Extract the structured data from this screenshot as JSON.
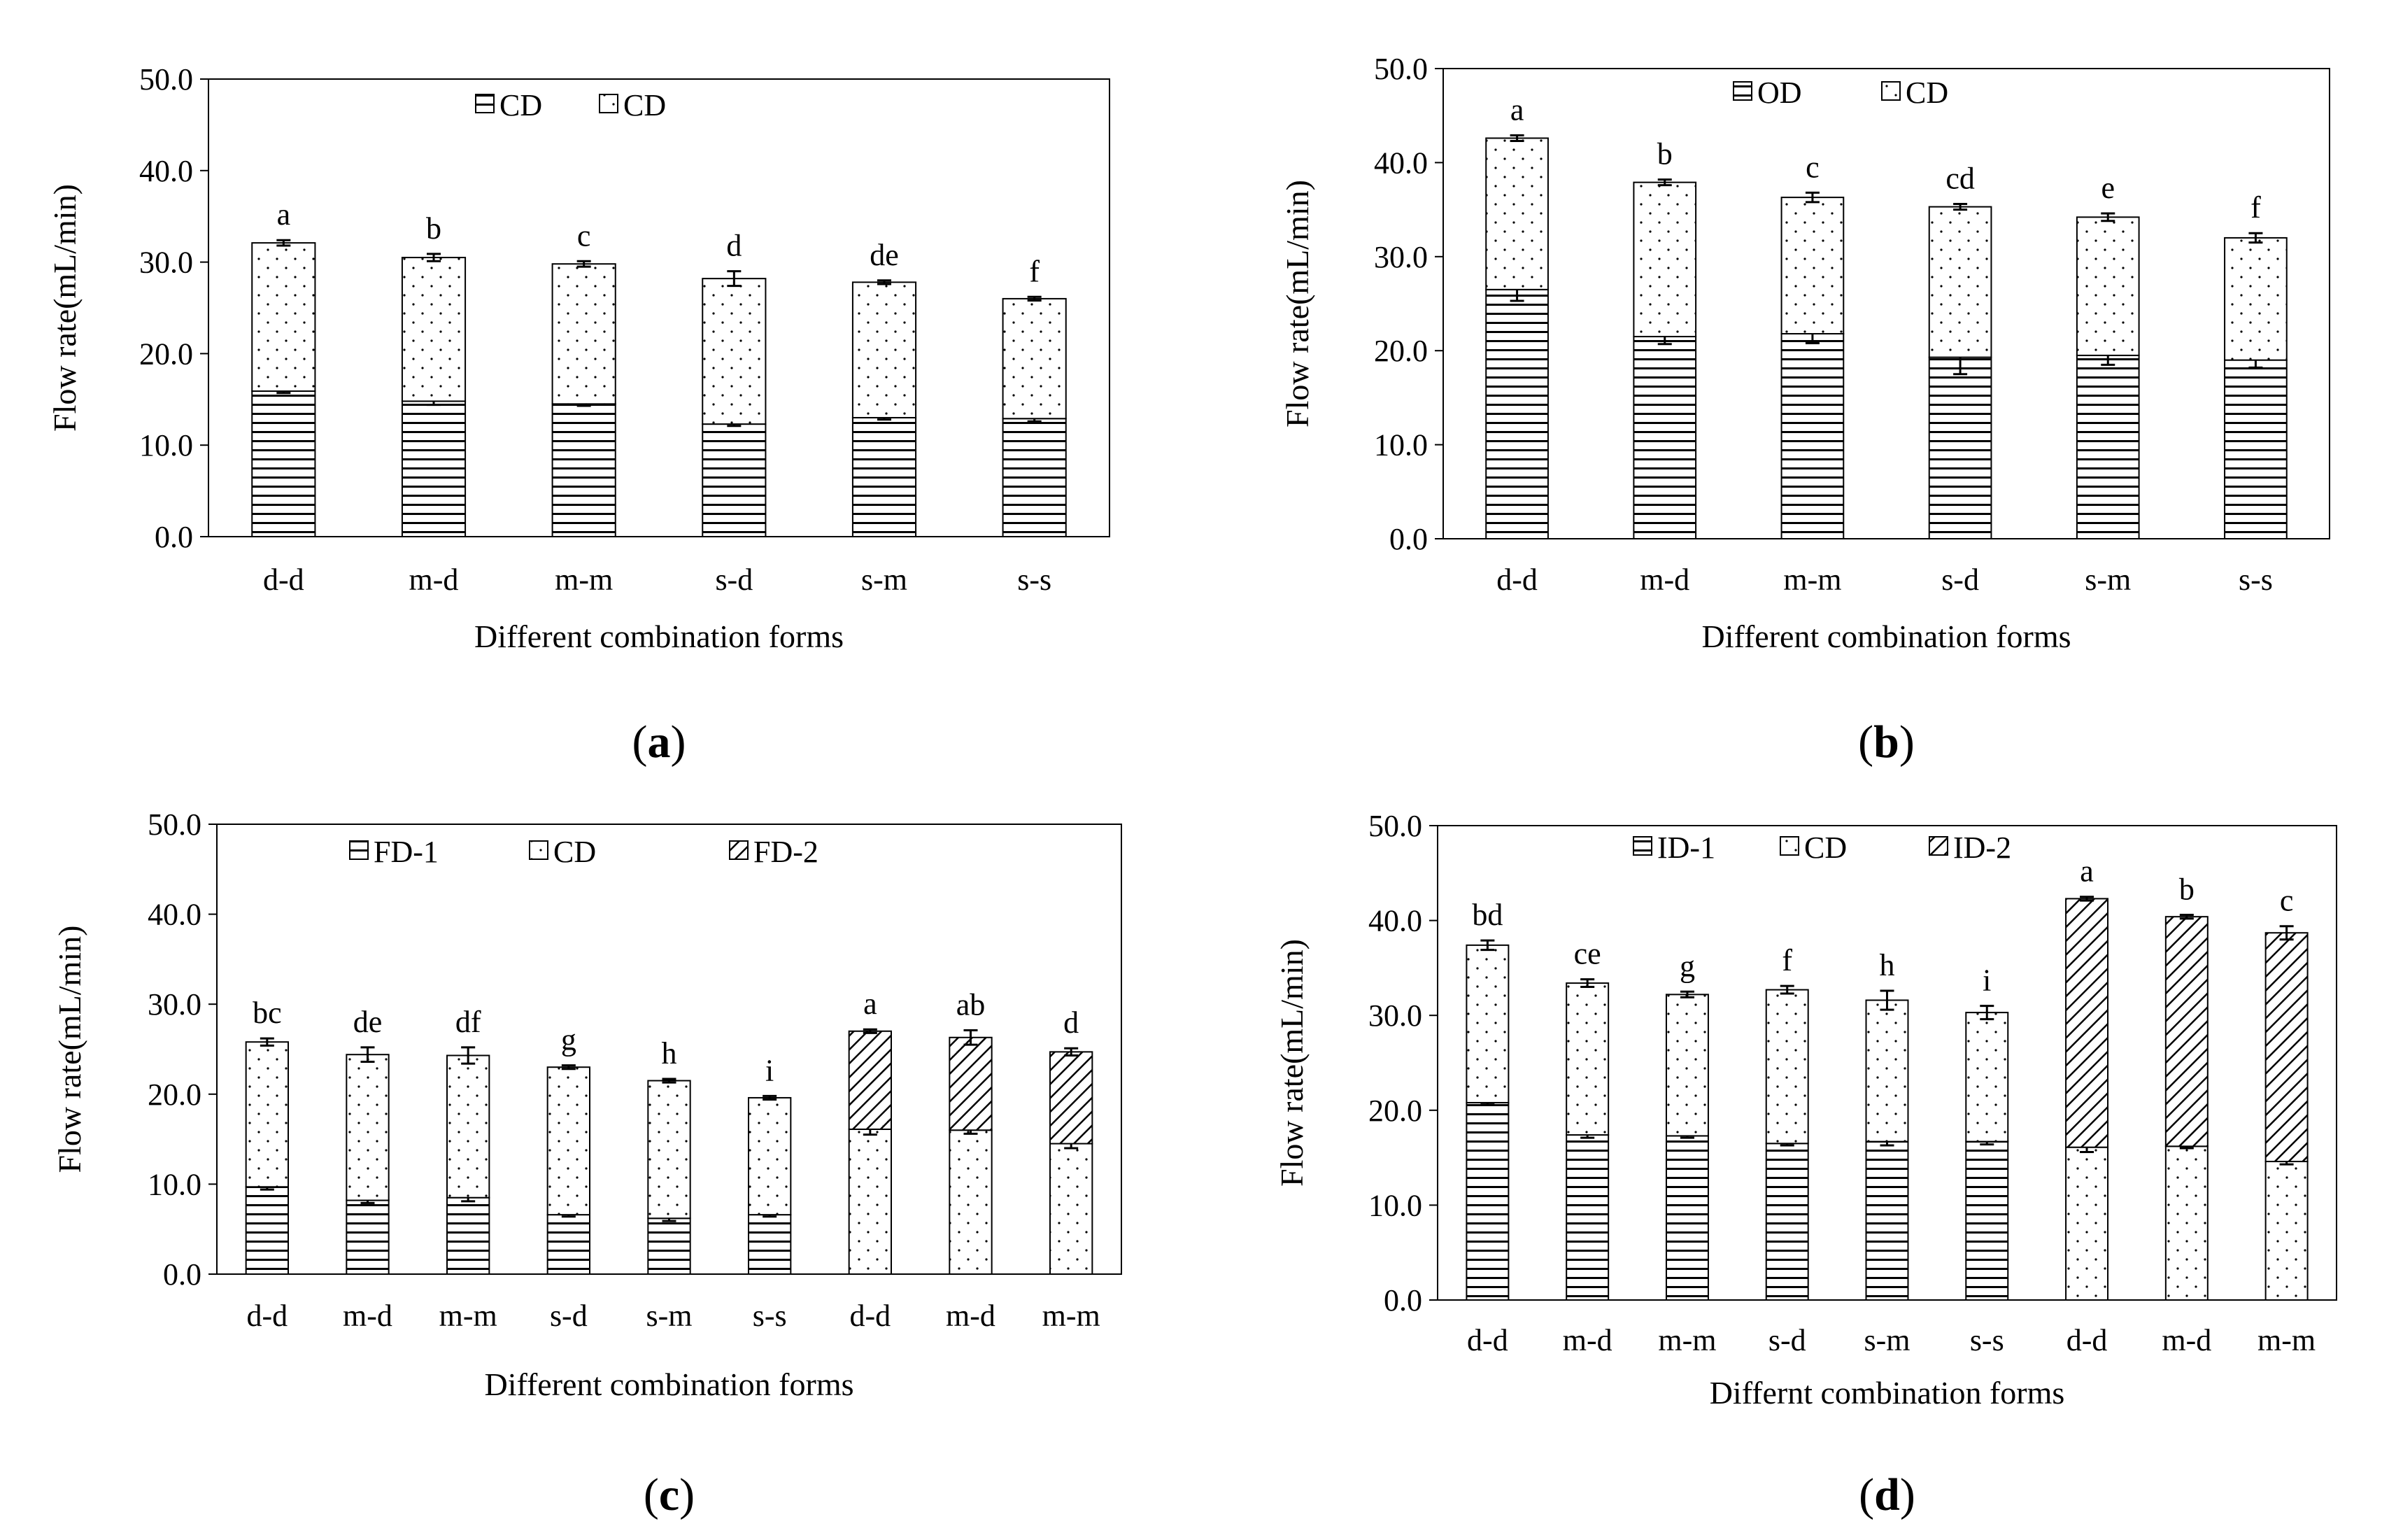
{
  "figure": {
    "background": "#ffffff",
    "bar_stroke": "#000000"
  },
  "chart_data": [
    {
      "id": "a",
      "panel_label": "a",
      "type": "bar",
      "stacked": true,
      "title": "",
      "xlabel": "Different combination forms",
      "ylabel": "Flow rate(mL/min)",
      "ylim": [
        0,
        50
      ],
      "yticks": [
        "0.0",
        "10.0",
        "20.0",
        "30.0",
        "40.0",
        "50.0"
      ],
      "categories": [
        "d-d",
        "m-d",
        "m-m",
        "s-d",
        "s-m",
        "s-s"
      ],
      "series": [
        {
          "name": "CD",
          "pattern": "hlines",
          "values": [
            15.9,
            14.8,
            14.5,
            12.3,
            13.0,
            12.9
          ],
          "errors": [
            0.2,
            0.4,
            0.2,
            0.2,
            0.2,
            0.3
          ]
        },
        {
          "name": "CD",
          "pattern": "dots",
          "values": [
            16.2,
            15.7,
            15.3,
            15.9,
            14.8,
            13.1
          ],
          "errors": [
            0.3,
            0.4,
            0.3,
            0.8,
            0.2,
            0.2
          ]
        }
      ],
      "significance": [
        "a",
        "b",
        "c",
        "d",
        "de",
        "f"
      ]
    },
    {
      "id": "b",
      "panel_label": "b",
      "type": "bar",
      "stacked": true,
      "title": "",
      "xlabel": "Different combination forms",
      "ylabel": "Flow rate(mL/min)",
      "ylim": [
        0,
        50
      ],
      "yticks": [
        "0.0",
        "10.0",
        "20.0",
        "30.0",
        "40.0",
        "50.0"
      ],
      "categories": [
        "d-d",
        "m-d",
        "m-m",
        "s-d",
        "s-m",
        "s-s"
      ],
      "series": [
        {
          "name": "OD",
          "pattern": "hlines",
          "values": [
            26.5,
            21.5,
            21.8,
            19.3,
            19.5,
            19.0
          ],
          "errors": [
            1.2,
            0.8,
            1.0,
            1.8,
            1.0,
            0.8
          ]
        },
        {
          "name": "CD",
          "pattern": "dots",
          "values": [
            16.1,
            16.4,
            14.5,
            16.0,
            14.7,
            13.0
          ],
          "errors": [
            0.3,
            0.3,
            0.5,
            0.3,
            0.4,
            0.5
          ]
        }
      ],
      "significance": [
        "a",
        "b",
        "c",
        "cd",
        "e",
        "f"
      ]
    },
    {
      "id": "c",
      "panel_label": "c",
      "type": "bar",
      "stacked": true,
      "title": "",
      "xlabel": "Different combination forms",
      "ylabel": "Flow rate(mL/min)",
      "ylim": [
        0,
        50
      ],
      "yticks": [
        "0.0",
        "10.0",
        "20.0",
        "30.0",
        "40.0",
        "50.0"
      ],
      "categories": [
        "d-d",
        "m-d",
        "m-m",
        "s-d",
        "s-m",
        "s-s",
        "d-d",
        "m-d",
        "m-m"
      ],
      "series": [
        {
          "name": "FD-1",
          "pattern": "hlines",
          "values": [
            9.7,
            8.2,
            8.5,
            6.6,
            6.2,
            6.6,
            null,
            null,
            null
          ],
          "errors": [
            0.3,
            0.3,
            0.4,
            0.2,
            0.3,
            0.2,
            null,
            null,
            null
          ]
        },
        {
          "name": "CD",
          "pattern": "dots",
          "values": [
            16.1,
            16.2,
            15.8,
            16.4,
            15.3,
            13.0,
            16.1,
            16.0,
            14.5
          ],
          "errors": [
            0.4,
            0.8,
            0.9,
            0.2,
            0.2,
            0.2,
            0.6,
            0.4,
            0.5
          ]
        },
        {
          "name": "FD-2",
          "pattern": "diag",
          "values": [
            null,
            null,
            null,
            null,
            null,
            null,
            10.9,
            10.3,
            10.2
          ],
          "errors": [
            null,
            null,
            null,
            null,
            null,
            null,
            0.2,
            0.8,
            0.4
          ]
        }
      ],
      "significance": [
        "bc",
        "de",
        "df",
        "g",
        "h",
        "i",
        "a",
        "ab",
        "d"
      ]
    },
    {
      "id": "d",
      "panel_label": "d",
      "type": "bar",
      "stacked": true,
      "title": "",
      "xlabel": "Differnt combination forms",
      "ylabel": "Flow rate(mL/min)",
      "ylim": [
        0,
        50
      ],
      "yticks": [
        "0.0",
        "10.0",
        "20.0",
        "30.0",
        "40.0",
        "50.0"
      ],
      "categories": [
        "d-d",
        "m-d",
        "m-m",
        "s-d",
        "s-m",
        "s-s",
        "d-d",
        "m-d",
        "m-m"
      ],
      "series": [
        {
          "name": "ID-1",
          "pattern": "hlines",
          "values": [
            20.8,
            17.4,
            17.3,
            16.5,
            16.7,
            16.7,
            null,
            null,
            null
          ],
          "errors": [
            0.2,
            0.3,
            0.2,
            0.2,
            0.4,
            0.3,
            null,
            null,
            null
          ]
        },
        {
          "name": "CD",
          "pattern": "dots",
          "values": [
            16.6,
            16.0,
            14.9,
            16.2,
            14.9,
            13.6,
            16.1,
            16.2,
            14.6
          ],
          "errors": [
            0.5,
            0.4,
            0.3,
            0.4,
            1.0,
            0.7,
            0.5,
            0.2,
            0.3
          ]
        },
        {
          "name": "ID-2",
          "pattern": "diag",
          "values": [
            null,
            null,
            null,
            null,
            null,
            null,
            26.2,
            24.2,
            24.1
          ],
          "errors": [
            null,
            null,
            null,
            null,
            null,
            null,
            0.2,
            0.2,
            0.7
          ]
        }
      ],
      "significance": [
        "bd",
        "ce",
        "g",
        "f",
        "h",
        "i",
        "a",
        "b",
        "c"
      ]
    }
  ]
}
